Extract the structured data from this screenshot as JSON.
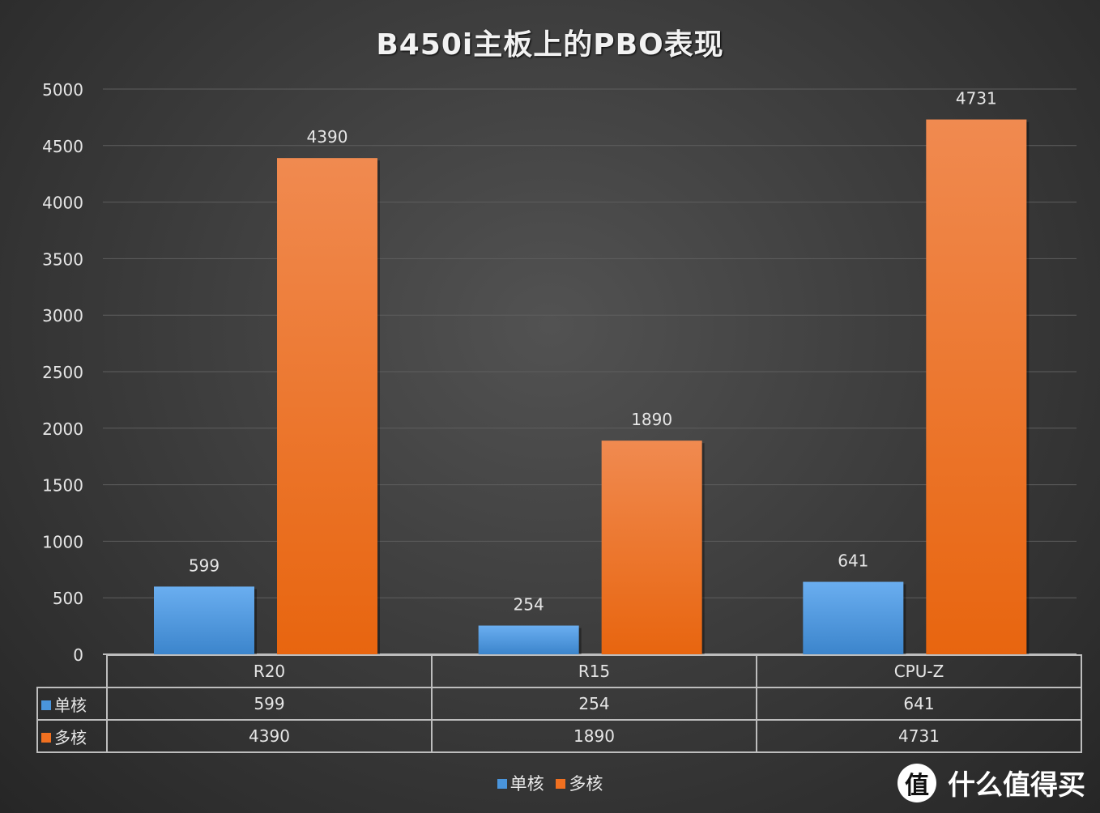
{
  "chart_data": {
    "type": "bar",
    "title": "B450i主板上的PBO表现",
    "categories": [
      "R20",
      "R15",
      "CPU-Z"
    ],
    "series": [
      {
        "name": "单核",
        "values": [
          599,
          254,
          641
        ],
        "color": "#4a95dc"
      },
      {
        "name": "多核",
        "values": [
          4390,
          1890,
          4731
        ],
        "color": "#f07020"
      }
    ],
    "ylim": [
      0,
      5000
    ],
    "yticks": [
      0,
      500,
      1000,
      1500,
      2000,
      2500,
      3000,
      3500,
      4000,
      4500,
      5000
    ],
    "grid": true,
    "data_table": true,
    "legend_position": "bottom"
  },
  "watermark": {
    "logo_char": "值",
    "text": "什么值得买"
  }
}
